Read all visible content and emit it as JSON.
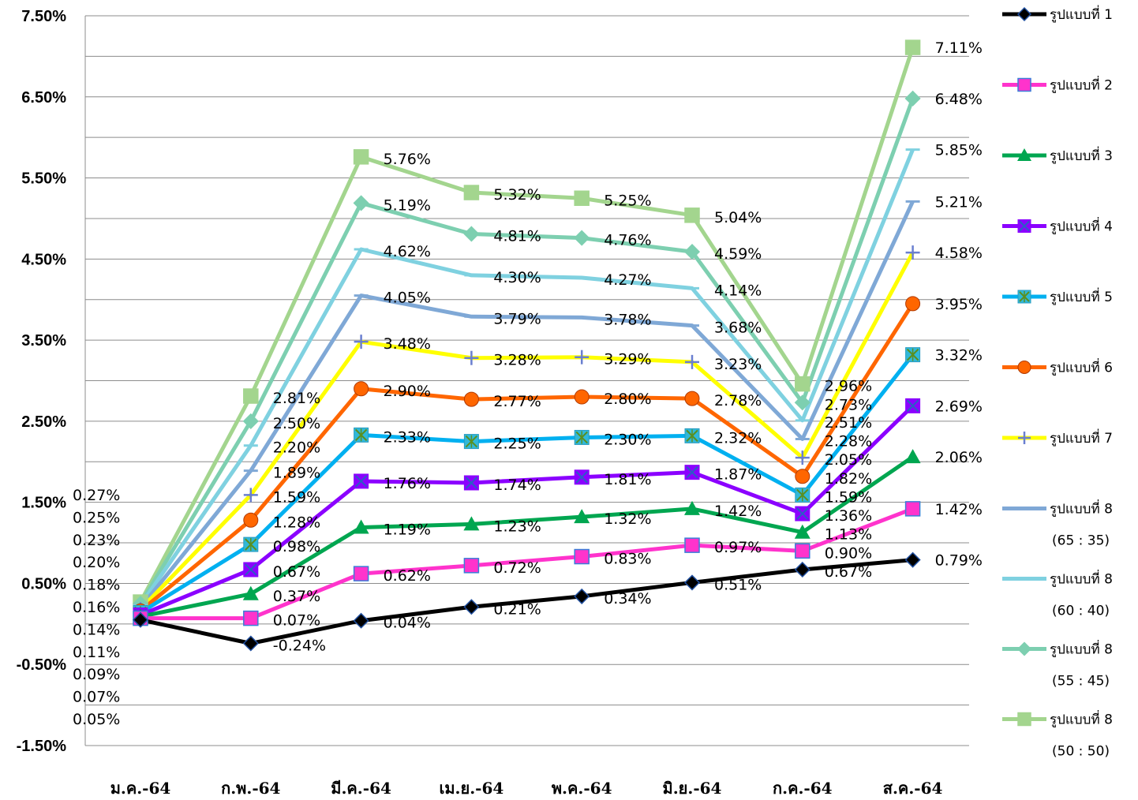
{
  "chart_data": {
    "type": "line",
    "categories": [
      "ม.ค.-64",
      "ก.พ.-64",
      "มี.ค.-64",
      "เม.ย.-64",
      "พ.ค.-64",
      "มิ.ย.-64",
      "ก.ค.-64",
      "ส.ค.-64"
    ],
    "y_ticks": [
      "7.50%",
      "6.50%",
      "5.50%",
      "4.50%",
      "3.50%",
      "2.50%",
      "1.50%",
      "0.50%",
      "-0.50%",
      "-1.50%"
    ],
    "ylim": [
      -1.5,
      7.5
    ],
    "grid": true,
    "legend": "right",
    "series": [
      {
        "name": "รูปแบบที่ 1",
        "color": "#000000",
        "marker": "diamond",
        "values": [
          0.05,
          -0.24,
          0.04,
          0.21,
          0.34,
          0.51,
          0.67,
          0.79
        ],
        "labels": [
          "0.05%",
          "-0.24%",
          "0.04%",
          "0.21%",
          "0.34%",
          "0.51%",
          "0.67%",
          "0.79%"
        ]
      },
      {
        "name": "รูปแบบที่ 2",
        "color": "#ff33cc",
        "marker": "square",
        "values": [
          0.07,
          0.07,
          0.62,
          0.72,
          0.83,
          0.97,
          0.9,
          1.42
        ],
        "labels": [
          "0.07%",
          "0.07%",
          "0.62%",
          "0.72%",
          "0.83%",
          "0.97%",
          "0.90%",
          "1.42%"
        ]
      },
      {
        "name": "รูปแบบที่ 3",
        "color": "#00a650",
        "marker": "triangle",
        "values": [
          0.09,
          0.37,
          1.19,
          1.23,
          1.32,
          1.42,
          1.13,
          2.06
        ],
        "labels": [
          "0.09%",
          "0.37%",
          "1.19%",
          "1.23%",
          "1.32%",
          "1.42%",
          "1.13%",
          "2.06%"
        ]
      },
      {
        "name": "รูปแบบที่ 4",
        "color": "#8b00ff",
        "marker": "xbox",
        "values": [
          0.11,
          0.67,
          1.76,
          1.74,
          1.81,
          1.87,
          1.36,
          2.69
        ],
        "labels": [
          "0.11%",
          "0.67%",
          "1.76%",
          "1.74%",
          "1.81%",
          "1.87%",
          "1.36%",
          "2.69%"
        ]
      },
      {
        "name": "รูปแบบที่ 5",
        "color": "#00b0f0",
        "marker": "starbox",
        "values": [
          0.14,
          0.98,
          2.33,
          2.25,
          2.3,
          2.32,
          1.59,
          3.32
        ],
        "labels": [
          "0.14%",
          "0.98%",
          "2.33%",
          "2.25%",
          "2.30%",
          "2.32%",
          "1.59%",
          "3.32%"
        ]
      },
      {
        "name": "รูปแบบที่ 6",
        "color": "#ff6600",
        "marker": "circle",
        "values": [
          0.16,
          1.28,
          2.9,
          2.77,
          2.8,
          2.78,
          1.82,
          3.95
        ],
        "labels": [
          "0.16%",
          "1.28%",
          "2.90%",
          "2.77%",
          "2.80%",
          "2.78%",
          "1.82%",
          "3.95%"
        ]
      },
      {
        "name": "รูปแบบที่ 7",
        "color": "#ffff00",
        "marker": "plus",
        "values": [
          0.18,
          1.59,
          3.48,
          3.28,
          3.29,
          3.23,
          2.05,
          4.58
        ],
        "labels": [
          "0.18%",
          "1.59%",
          "3.48%",
          "3.28%",
          "3.29%",
          "3.23%",
          "2.05%",
          "4.58%"
        ]
      },
      {
        "name": "รูปแบบที่ 8",
        "name2": "(65 : 35)",
        "color": "#7fa8d6",
        "marker": "dash",
        "values": [
          0.2,
          1.89,
          4.05,
          3.79,
          3.78,
          3.68,
          2.28,
          5.21
        ],
        "labels": [
          "0.20%",
          "1.89%",
          "4.05%",
          "3.79%",
          "3.78%",
          "3.68%",
          "2.28%",
          "5.21%"
        ]
      },
      {
        "name": "รูปแบบที่ 8",
        "name2": "(60 : 40)",
        "color": "#7fd1e0",
        "marker": "dash",
        "values": [
          0.23,
          2.2,
          4.62,
          4.3,
          4.27,
          4.14,
          2.51,
          5.85
        ],
        "labels": [
          "0.23%",
          "2.20%",
          "4.62%",
          "4.30%",
          "4.27%",
          "4.14%",
          "2.51%",
          "5.85%"
        ]
      },
      {
        "name": "รูปแบบที่ 8",
        "name2": "(55 : 45)",
        "color": "#7dcfb0",
        "marker": "diamond",
        "values": [
          0.25,
          2.5,
          5.19,
          4.81,
          4.76,
          4.59,
          2.73,
          6.48
        ],
        "labels": [
          "0.25%",
          "2.50%",
          "5.19%",
          "4.81%",
          "4.76%",
          "4.59%",
          "2.73%",
          "6.48%"
        ]
      },
      {
        "name": "รูปแบบที่ 8",
        "name2": "(50 : 50)",
        "color": "#a3d58e",
        "marker": "square",
        "values": [
          0.27,
          2.81,
          5.76,
          5.32,
          5.25,
          5.04,
          2.96,
          7.11
        ],
        "labels": [
          "0.27%",
          "2.81%",
          "5.76%",
          "5.32%",
          "5.25%",
          "5.04%",
          "2.96%",
          "7.11%"
        ]
      }
    ]
  }
}
